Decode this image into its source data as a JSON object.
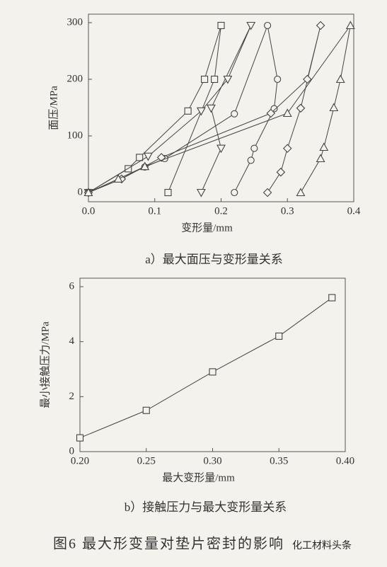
{
  "chart_data": [
    {
      "type": "line",
      "xlabel": "变形量/mm",
      "ylabel": "面压/MPa",
      "caption": "a）最大面压与变形量关系",
      "xlim": [
        0,
        0.4
      ],
      "ylim": [
        0,
        300
      ],
      "xticks": [
        {
          "value": 0,
          "label": "0.0"
        },
        0.1,
        0.2,
        0.3,
        0.4
      ],
      "yticks": [
        0,
        100,
        200,
        300
      ],
      "series": [
        {
          "marker": "square",
          "color": "#444",
          "x": [
            0,
            0.06,
            0.077,
            0.15,
            0.175,
            0.2,
            0.19,
            0.12
          ],
          "values": [
            0,
            42,
            62,
            144,
            200,
            295,
            200,
            0
          ]
        },
        {
          "marker": "triangle-down",
          "color": "#444",
          "x": [
            0,
            0.09,
            0.17,
            0.21,
            0.245,
            0.185,
            0.2,
            0.17
          ],
          "values": [
            0,
            64,
            144,
            200,
            295,
            149,
            78,
            0
          ]
        },
        {
          "marker": "circle",
          "color": "#444",
          "x": [
            0,
            0.085,
            0.115,
            0.22,
            0.27,
            0.285,
            0.28,
            0.25,
            0.245,
            0.22
          ],
          "values": [
            0,
            45,
            60,
            139,
            295,
            200,
            148,
            78,
            57,
            0
          ]
        },
        {
          "marker": "diamond",
          "color": "#444",
          "x": [
            0,
            0.05,
            0.11,
            0.275,
            0.33,
            0.35,
            0.32,
            0.3,
            0.29,
            0.27
          ],
          "values": [
            0,
            24,
            62,
            140,
            200,
            295,
            149,
            78,
            36,
            0
          ]
        },
        {
          "marker": "triangle-up",
          "color": "#444",
          "x": [
            0,
            0.045,
            0.085,
            0.3,
            0.395,
            0.38,
            0.37,
            0.355,
            0.35,
            0.32
          ],
          "values": [
            0,
            24,
            46,
            140,
            295,
            200,
            150,
            80,
            60,
            0
          ]
        }
      ]
    },
    {
      "type": "line",
      "xlabel": "最大变形量/mm",
      "ylabel": "最小接触压力/MPa",
      "caption": "b）接触压力与最大变形量关系",
      "xlim": [
        0.2,
        0.4
      ],
      "ylim": [
        0,
        6
      ],
      "xticks": [
        {
          "value": 0.2,
          "label": "0.20"
        },
        0.25,
        {
          "value": 0.3,
          "label": "0.30"
        },
        0.35,
        {
          "value": 0.4,
          "label": "0.40"
        }
      ],
      "yticks": [
        0,
        2,
        4,
        6
      ],
      "series": [
        {
          "marker": "square",
          "color": "#444",
          "x": [
            0.2,
            0.25,
            0.3,
            0.35,
            0.39
          ],
          "values": [
            0.5,
            1.5,
            2.9,
            4.2,
            5.6
          ]
        }
      ]
    }
  ],
  "figure_caption": "图6  最大形变量对垫片密封的影响",
  "watermark": "化工材料头条"
}
